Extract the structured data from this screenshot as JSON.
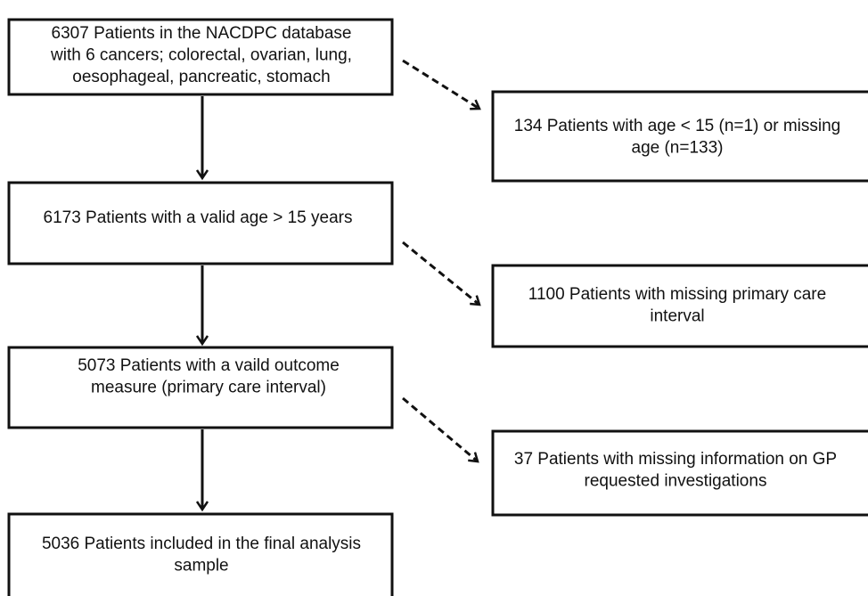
{
  "nodes": [
    {
      "lines": [
        "6307 Patients in the NACDPC database",
        "with 6 cancers; colorectal, ovarian, lung,",
        "oesophageal, pancreatic, stomach"
      ]
    },
    {
      "lines": [
        "134 Patients with age < 15 (n=1) or missing",
        "age (n=133)"
      ]
    },
    {
      "lines": [
        "6173 Patients with a valid age > 15 years"
      ]
    },
    {
      "lines": [
        "1100 Patients with missing primary care",
        "interval"
      ]
    },
    {
      "lines": [
        "5073 Patients with a vaild outcome",
        "measure (primary care interval)"
      ]
    },
    {
      "lines": [
        "37 Patients with missing information on GP",
        "requested investigations"
      ]
    },
    {
      "lines": [
        "5036 Patients included in the final analysis",
        "sample"
      ]
    }
  ]
}
